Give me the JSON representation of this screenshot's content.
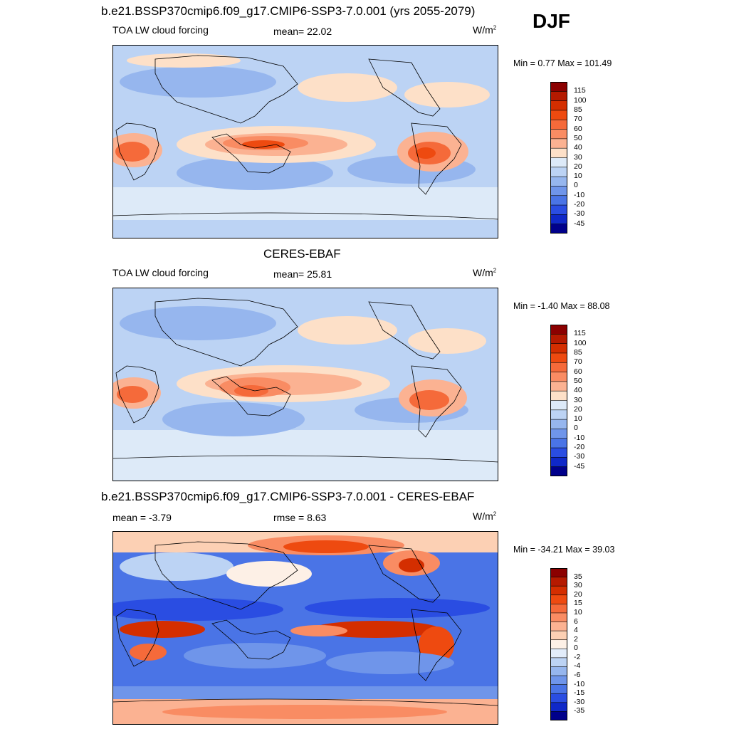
{
  "season": "DJF",
  "panels": [
    {
      "title": "b.e21.BSSP370cmip6.f09_g17.CMIP6-SSP3-7.0.001 (yrs 2055-2079)",
      "left_label": "TOA LW cloud forcing",
      "center_label": "mean=  22.02",
      "unit_base": "W/m",
      "unit_exp": "2",
      "minmax": "Min =   0.77 Max = 101.49",
      "levels": [
        "115",
        "100",
        "85",
        "70",
        "60",
        "50",
        "40",
        "30",
        "20",
        "10",
        "0",
        "-10",
        "-20",
        "-30",
        "-45"
      ],
      "colors": [
        "#8b0000",
        "#b51a00",
        "#d42e00",
        "#ee4a10",
        "#f56a3a",
        "#f98c63",
        "#fbb292",
        "#fde0c8",
        "#ddeaf8",
        "#bcd3f4",
        "#96b6ee",
        "#6f95ea",
        "#4a74e6",
        "#2a4de2",
        "#0f28c8",
        "#00008b"
      ]
    },
    {
      "title": "CERES-EBAF",
      "left_label": "TOA LW cloud forcing",
      "center_label": "mean=  25.81",
      "unit_base": "W/m",
      "unit_exp": "2",
      "minmax": "Min =  -1.40 Max =  88.08",
      "levels": [
        "115",
        "100",
        "85",
        "70",
        "60",
        "50",
        "40",
        "30",
        "20",
        "10",
        "0",
        "-10",
        "-20",
        "-30",
        "-45"
      ],
      "colors": [
        "#8b0000",
        "#b51a00",
        "#d42e00",
        "#ee4a10",
        "#f56a3a",
        "#f98c63",
        "#fbb292",
        "#fde0c8",
        "#ddeaf8",
        "#bcd3f4",
        "#96b6ee",
        "#6f95ea",
        "#4a74e6",
        "#2a4de2",
        "#0f28c8",
        "#00008b"
      ]
    },
    {
      "title": "b.e21.BSSP370cmip6.f09_g17.CMIP6-SSP3-7.0.001 - CERES-EBAF",
      "left_label": "mean =  -3.79",
      "center_label": "rmse =   8.63",
      "unit_base": "W/m",
      "unit_exp": "2",
      "minmax": "Min = -34.21 Max =  39.03",
      "levels": [
        "35",
        "30",
        "20",
        "15",
        "10",
        "6",
        "4",
        "2",
        "0",
        "-2",
        "-4",
        "-6",
        "-10",
        "-15",
        "-30",
        "-35"
      ],
      "colors": [
        "#8b0000",
        "#b51a00",
        "#d42e00",
        "#ee4a10",
        "#f56a3a",
        "#f98c63",
        "#fbb292",
        "#fcd0b4",
        "#fdf0e6",
        "#e2ecfa",
        "#bcd3f4",
        "#96b6ee",
        "#6f95ea",
        "#4a74e6",
        "#2a4de2",
        "#0f28c8",
        "#00008b"
      ]
    }
  ],
  "chart_data": [
    {
      "type": "heatmap",
      "title": "b.e21.BSSP370cmip6.f09_g17.CMIP6-SSP3-7.0.001 (yrs 2055-2079)",
      "variable": "TOA LW cloud forcing",
      "units": "W/m2",
      "mean": 22.02,
      "min": 0.77,
      "max": 101.49,
      "contour_levels": [
        -45,
        -30,
        -20,
        -10,
        0,
        10,
        20,
        30,
        40,
        50,
        60,
        70,
        85,
        100,
        115
      ]
    },
    {
      "type": "heatmap",
      "title": "CERES-EBAF",
      "variable": "TOA LW cloud forcing",
      "units": "W/m2",
      "mean": 25.81,
      "min": -1.4,
      "max": 88.08,
      "contour_levels": [
        -45,
        -30,
        -20,
        -10,
        0,
        10,
        20,
        30,
        40,
        50,
        60,
        70,
        85,
        100,
        115
      ]
    },
    {
      "type": "heatmap",
      "title": "b.e21.BSSP370cmip6.f09_g17.CMIP6-SSP3-7.0.001 - CERES-EBAF",
      "units": "W/m2",
      "mean": -3.79,
      "rmse": 8.63,
      "min": -34.21,
      "max": 39.03,
      "contour_levels": [
        -35,
        -30,
        -15,
        -10,
        -6,
        -4,
        -2,
        0,
        2,
        4,
        6,
        10,
        15,
        20,
        30,
        35
      ]
    }
  ]
}
